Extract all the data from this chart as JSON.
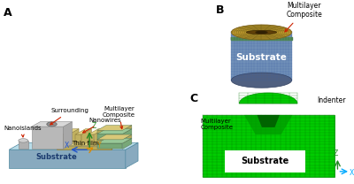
{
  "background_color": "#ffffff",
  "panel_labels": [
    "A",
    "B",
    "C"
  ],
  "panel_label_fontsize": 9,
  "panel_label_fontweight": "bold",
  "fig_width": 4.0,
  "fig_height": 2.08,
  "dpi": 100,
  "panel_A": {
    "substrate_color": "#a8ccd8",
    "substrate_side_color": "#88aabf",
    "substrate_top_color": "#b8dce8",
    "nanoisland_color": "#d0d0d0",
    "nanoisland_side_color": "#b0b0b0",
    "nanowire_top_color": "#e0d080",
    "nanowire_side_color": "#c0b060",
    "thin_film_top_color": "#d8c878",
    "thin_film_side_color": "#b8a858",
    "multilayer_colors_top": [
      "#98c898",
      "#d8c878",
      "#98c898",
      "#d8c878"
    ],
    "multilayer_colors_side": [
      "#78a878",
      "#b8a858",
      "#78a878",
      "#b8a858"
    ],
    "surrounding_top_color": "#d8d8d8",
    "surrounding_side_color": "#b8b8b8"
  },
  "panel_B": {
    "cylinder_top_color": "#c8a830",
    "cylinder_top_dark": "#504010",
    "cylinder_side_color": "#7090b8",
    "cylinder_side_dark": "#506080",
    "band_color": "#508858",
    "substrate_text_color": "#ffffff",
    "multilayer_label": "Multilayer\nComposite",
    "substrate_label": "Substrate"
  },
  "panel_C": {
    "mesh_color": "#00cc00",
    "mesh_dark_color": "#009900",
    "mesh_grid_color": "#007700",
    "indenter_color": "#00cc00",
    "substrate_box_color": "#ffffff",
    "indenter_label": "Indenter",
    "multilayer_label": "Multilayer\nComposite",
    "substrate_label": "Substrate"
  }
}
